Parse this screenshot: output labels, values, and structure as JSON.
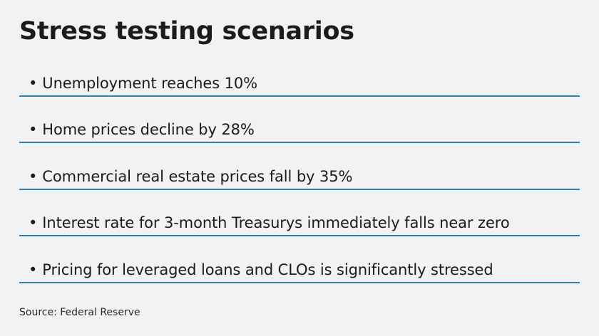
{
  "title": "Stress testing scenarios",
  "bullet_symbol": "•",
  "items": [
    {
      "text": "Unemployment reaches 10%"
    },
    {
      "text": "Home prices decline by 28%"
    },
    {
      "text": "Commercial real estate prices fall by 35%"
    },
    {
      "text": "Interest rate for 3-month Treasurys immediately falls near zero"
    },
    {
      "text": "Pricing for leveraged loans and CLOs is significantly stressed"
    }
  ],
  "source": "Source: Federal Reserve",
  "colors": {
    "background": "#f2f2f2",
    "divider": "#2f7fba",
    "text": "#1b1b1b"
  }
}
